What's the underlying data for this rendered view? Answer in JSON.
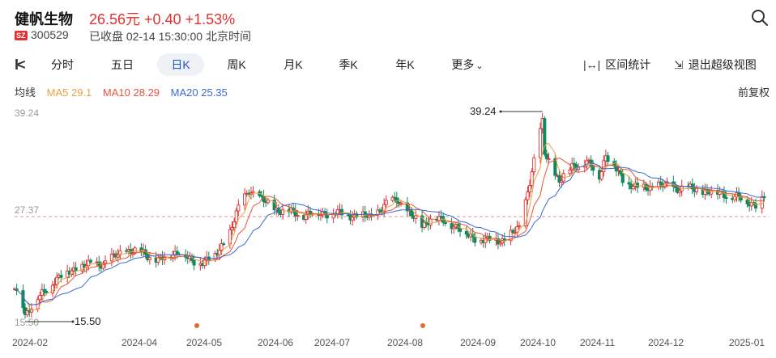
{
  "header": {
    "stock_name": "健帆生物",
    "price_line": "26.56元 +0.40 +1.53%",
    "exchange": "SZ",
    "code": "300529",
    "status": "已收盘 02-14 15:30:00 北京时间"
  },
  "toolbar": {
    "tabs": [
      "分时",
      "五日",
      "日K",
      "周K",
      "月K",
      "季K",
      "年K",
      "更多"
    ],
    "active_tab": "日K",
    "stats_label": "区间统计",
    "exit_label": "退出超级视图"
  },
  "indicators": {
    "label": "均线",
    "ma5": "MA5 29.1",
    "ma10": "MA10 28.29",
    "ma20": "MA20 25.35",
    "adjust": "前复权"
  },
  "colors": {
    "up": "#e03131",
    "down": "#0f8a5f",
    "ma5": "#f0a040",
    "ma10": "#e8553a",
    "ma20": "#3a6ad4"
  },
  "chart_data": {
    "type": "candlestick",
    "y_ticks": [
      "39.24",
      "27.37",
      "15.50"
    ],
    "ylim": [
      15.5,
      39.24
    ],
    "reference_price": 27.37,
    "x_labels": [
      "2024-02",
      "2024-04",
      "2024-05",
      "2024-06",
      "2024-07",
      "2024-08",
      "2024-09",
      "2024-10",
      "2024-11",
      "2024-12",
      "2025-01"
    ],
    "annotations": [
      {
        "label": "39.24",
        "type": "high",
        "value": 39.24,
        "date": "2024-10-08"
      },
      {
        "label": "15.50",
        "type": "low",
        "value": 15.5,
        "date": "2024-02-06"
      }
    ],
    "event_markers": [
      "2024-05",
      "2024-08"
    ],
    "close_path": [
      [
        "2024-02-01",
        19.3
      ],
      [
        "2024-02-05",
        17.6
      ],
      [
        "2024-02-06",
        16.4
      ],
      [
        "2024-02-19",
        20.0
      ],
      [
        "2024-03-01",
        21.6
      ],
      [
        "2024-03-15",
        22.2
      ],
      [
        "2024-03-25",
        23.6
      ],
      [
        "2024-04-01",
        23.3
      ],
      [
        "2024-04-10",
        22.4
      ],
      [
        "2024-04-19",
        23.6
      ],
      [
        "2024-04-25",
        22.1
      ],
      [
        "2024-05-06",
        22.8
      ],
      [
        "2024-05-13",
        25.7
      ],
      [
        "2024-05-17",
        28.2
      ],
      [
        "2024-05-22",
        30.5
      ],
      [
        "2024-05-28",
        29.2
      ],
      [
        "2024-06-05",
        28.1
      ],
      [
        "2024-06-17",
        27.6
      ],
      [
        "2024-06-28",
        27.8
      ],
      [
        "2024-07-08",
        27.6
      ],
      [
        "2024-07-18",
        27.3
      ],
      [
        "2024-07-26",
        28.7
      ],
      [
        "2024-07-31",
        29.4
      ],
      [
        "2024-08-07",
        27.4
      ],
      [
        "2024-08-12",
        26.4
      ],
      [
        "2024-08-16",
        27.2
      ],
      [
        "2024-08-26",
        26.6
      ],
      [
        "2024-09-03",
        25.2
      ],
      [
        "2024-09-12",
        24.6
      ],
      [
        "2024-09-20",
        24.8
      ],
      [
        "2024-09-27",
        26.0
      ],
      [
        "2024-09-30",
        29.2
      ],
      [
        "2024-10-08",
        38.0
      ],
      [
        "2024-10-09",
        34.6
      ],
      [
        "2024-10-11",
        33.8
      ],
      [
        "2024-10-16",
        31.2
      ],
      [
        "2024-10-22",
        33.2
      ],
      [
        "2024-10-29",
        33.4
      ],
      [
        "2024-11-04",
        32.1
      ],
      [
        "2024-11-07",
        34.3
      ],
      [
        "2024-11-15",
        31.6
      ],
      [
        "2024-11-22",
        30.5
      ],
      [
        "2024-12-02",
        30.9
      ],
      [
        "2024-12-12",
        30.6
      ],
      [
        "2024-12-23",
        30.3
      ],
      [
        "2025-01-03",
        29.9
      ],
      [
        "2025-01-13",
        29.1
      ],
      [
        "2025-01-17",
        28.8
      ],
      [
        "2025-01-21",
        29.6
      ]
    ]
  }
}
